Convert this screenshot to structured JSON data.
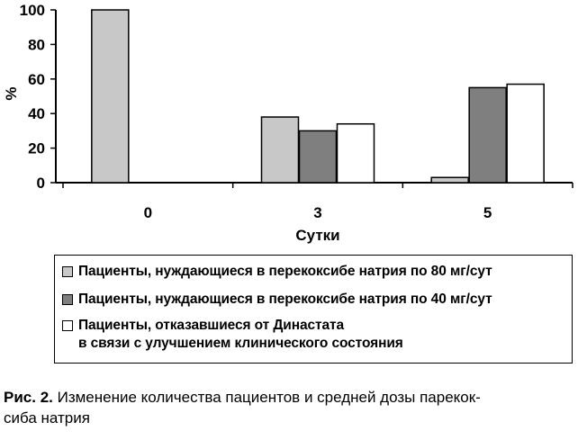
{
  "chart_data": {
    "type": "bar",
    "categories": [
      "0",
      "3",
      "5"
    ],
    "series": [
      {
        "name": "Пациенты, нуждающиеся в перекоксибе натрия по 80 мг/сут",
        "values": [
          100,
          38,
          3
        ],
        "color": "#c8c8c8"
      },
      {
        "name": "Пациенты, нуждающиеся в перекоксибе натрия по 40 мг/сут",
        "values": [
          0,
          30,
          55
        ],
        "color": "#7f7f7f"
      },
      {
        "name": "Пациенты, отказавшиеся от Династата\nв связи с улучшением клинического состояния",
        "values": [
          0,
          34,
          57
        ],
        "color": "#ffffff"
      }
    ],
    "xlabel": "Сутки",
    "ylabel": "%",
    "ylim": [
      0,
      100
    ],
    "yticks": [
      0,
      20,
      40,
      60,
      80,
      100
    ],
    "grid": false,
    "legend_position": "bottom"
  },
  "caption": {
    "label": "Рис. 2.",
    "text": " Изменение количества пациентов и средней дозы парекок-\nсиба натрия"
  }
}
